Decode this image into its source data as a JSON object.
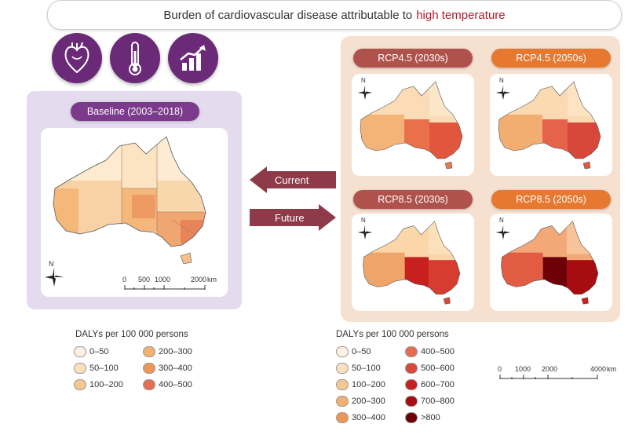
{
  "title": {
    "prefix": "Burden of cardiovascular disease attributable to",
    "highlight": "high temperature"
  },
  "icons": [
    "heart-icon",
    "thermometer-icon",
    "growth-chart-icon"
  ],
  "baseline": {
    "label": "Baseline (2003–2018)"
  },
  "scenarios": [
    {
      "label": "RCP4.5 (2030s)"
    },
    {
      "label": "RCP4.5 (2050s)"
    },
    {
      "label": "RCP8.5 (2030s)"
    },
    {
      "label": "RCP8.5 (2050s)"
    }
  ],
  "arrows": {
    "current": "Current",
    "future": "Future"
  },
  "north_label": "N",
  "scale_left": {
    "ticks": [
      "0",
      "500",
      "1000",
      "2000"
    ],
    "unit": "km"
  },
  "scale_right": {
    "ticks": [
      "0",
      "1000",
      "2000",
      "4000"
    ],
    "unit": "km"
  },
  "legend_left": {
    "title": "DALYs per 100 000 persons",
    "items": [
      {
        "label": "0–50",
        "color": "#fdf1e3"
      },
      {
        "label": "50–100",
        "color": "#fbe0c0"
      },
      {
        "label": "100–200",
        "color": "#f6c690"
      },
      {
        "label": "200–300",
        "color": "#f4b070"
      },
      {
        "label": "300–400",
        "color": "#ee9655"
      },
      {
        "label": "400–500",
        "color": "#e66e50"
      }
    ]
  },
  "legend_right": {
    "title": "DALYs per 100 000 persons",
    "items": [
      {
        "label": "0–50",
        "color": "#fdf1e3"
      },
      {
        "label": "50–100",
        "color": "#fbe0c0"
      },
      {
        "label": "100–200",
        "color": "#f6c690"
      },
      {
        "label": "200–300",
        "color": "#f4b070"
      },
      {
        "label": "300–400",
        "color": "#ee9655"
      },
      {
        "label": "400–500",
        "color": "#e66e50"
      },
      {
        "label": "500–600",
        "color": "#d8483a"
      },
      {
        "label": "600–700",
        "color": "#c8201e"
      },
      {
        "label": "700–800",
        "color": "#a60c10"
      },
      {
        "label": ">800",
        "color": "#6e0008"
      }
    ]
  },
  "colors": {
    "purple": "#6a2a78",
    "rcp45": "#b0524c",
    "rcp85_2050": "#e6782f",
    "arrow": "#8e3a48"
  }
}
